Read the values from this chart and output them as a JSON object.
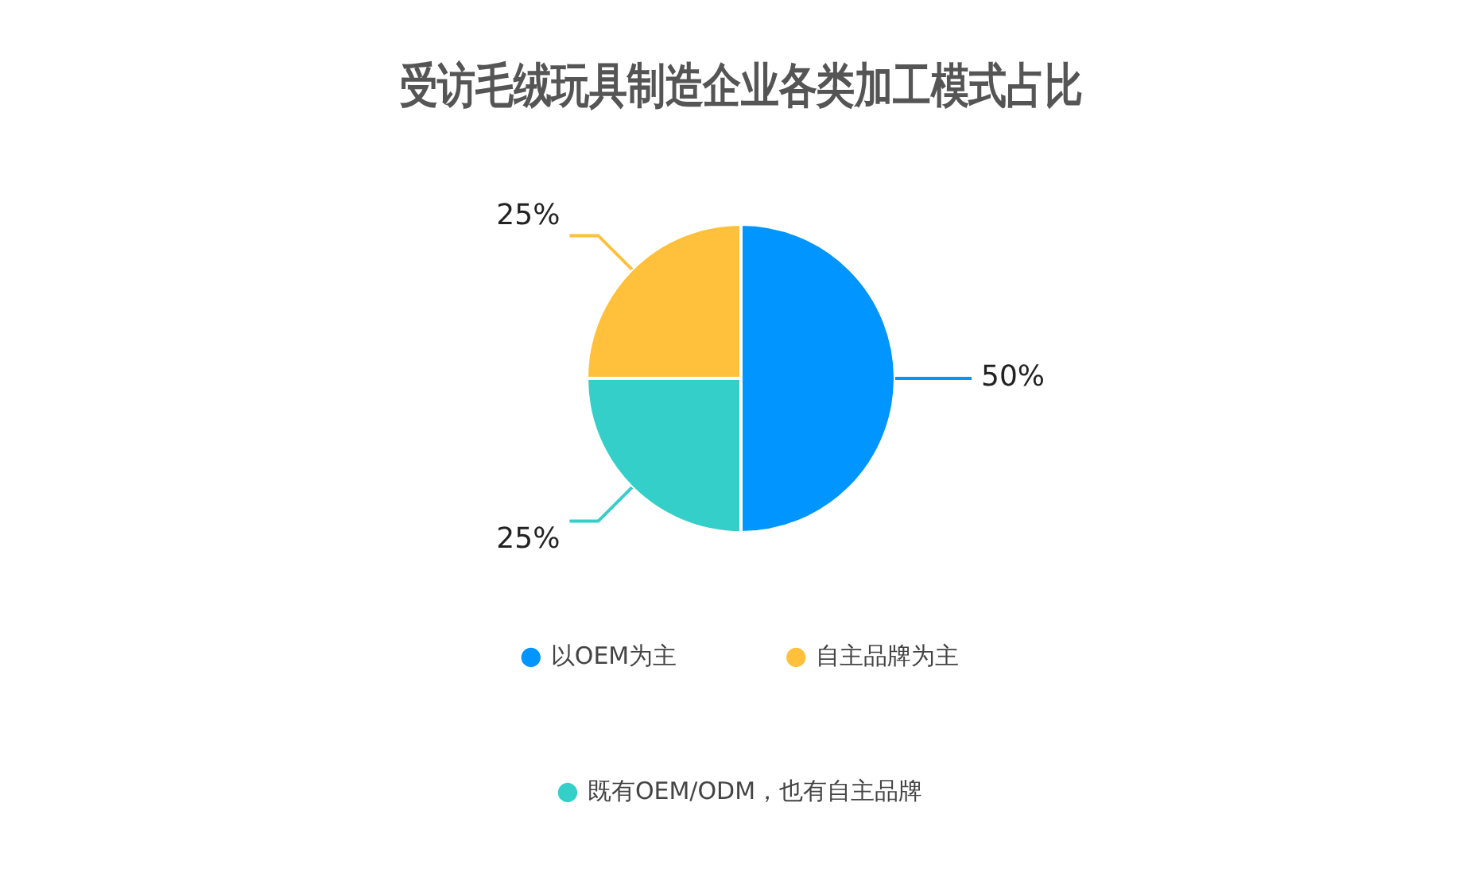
{
  "chart_data": {
    "type": "pie",
    "title": "受访毛绒玩具制造企业各类加工模式占比",
    "categories": [
      "以OEM为主",
      "自主品牌为主",
      "既有OEM/ODM，也有自主品牌"
    ],
    "values": [
      50,
      25,
      25
    ],
    "colors": [
      "#0095ff",
      "#ffc13b",
      "#35cfc9"
    ],
    "value_labels": [
      "50%",
      "25%",
      "25%"
    ],
    "legend": "bottom"
  }
}
